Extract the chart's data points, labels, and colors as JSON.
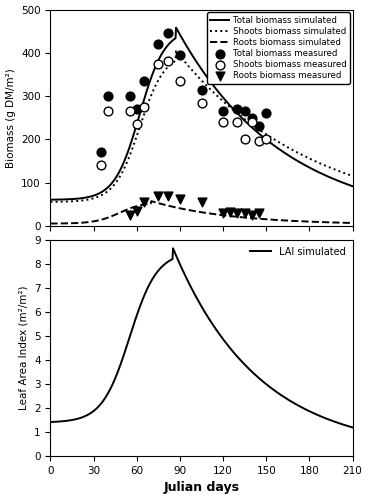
{
  "total_biomass_measured_x": [
    35,
    40,
    55,
    60,
    65,
    75,
    82,
    90,
    105,
    120,
    130,
    135,
    140,
    145,
    150
  ],
  "total_biomass_measured_y": [
    170,
    300,
    300,
    270,
    335,
    420,
    445,
    395,
    315,
    265,
    270,
    265,
    250,
    230,
    260
  ],
  "shoots_biomass_measured_x": [
    35,
    40,
    55,
    60,
    65,
    75,
    82,
    90,
    105,
    120,
    130,
    135,
    140,
    145,
    150
  ],
  "shoots_biomass_measured_y": [
    140,
    265,
    265,
    235,
    275,
    375,
    380,
    335,
    285,
    240,
    240,
    200,
    240,
    195,
    200
  ],
  "roots_biomass_measured_x": [
    55,
    60,
    65,
    75,
    82,
    90,
    105,
    120,
    125,
    130,
    135,
    140,
    145
  ],
  "roots_biomass_measured_y": [
    25,
    35,
    55,
    70,
    68,
    62,
    55,
    30,
    32,
    30,
    30,
    25,
    30
  ],
  "xlim": [
    0,
    210
  ],
  "biomass_ylim": [
    0,
    500
  ],
  "lai_ylim": [
    0,
    9
  ],
  "xticks": [
    0,
    30,
    60,
    90,
    120,
    150,
    180,
    210
  ],
  "biomass_yticks": [
    0,
    100,
    200,
    300,
    400,
    500
  ],
  "lai_yticks": [
    0,
    1,
    2,
    3,
    4,
    5,
    6,
    7,
    8,
    9
  ],
  "xlabel": "Julian days",
  "biomass_ylabel": "Biomass (g DM/m²)",
  "lai_ylabel": "Leaf Area Index (m²/m²)",
  "legend_labels": [
    "Total biomass simulated",
    "Shoots biomass simulated",
    "Roots biomass simulated",
    "Total biomass measured",
    "Shoots biomass measured",
    "Roots biomass measured"
  ],
  "lai_legend_label": "LAI simulated",
  "line_color": "black",
  "background_color": "white"
}
